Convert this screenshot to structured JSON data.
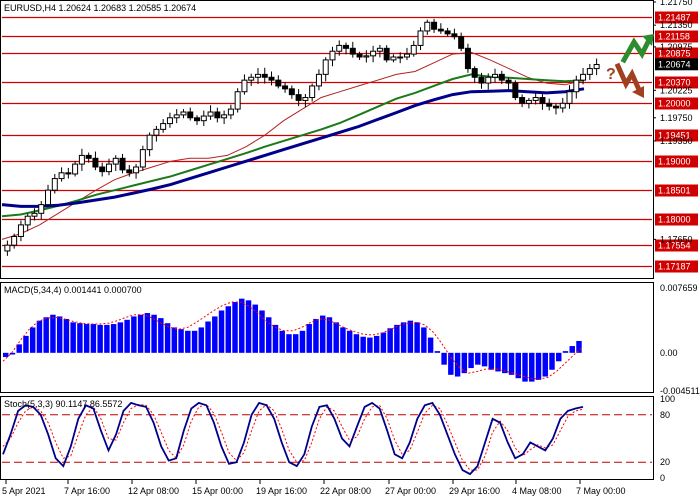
{
  "header": {
    "symbol_line": "EURUSD,H4  1.20624 1.20683 1.20585 1.20674"
  },
  "colors": {
    "background": "#ffffff",
    "candle": "#000000",
    "resistance": "#d00000",
    "price_tag": "#000000",
    "ma_fast": "#b22222",
    "ma_mid": "#1a7a1a",
    "ma_slow": "#00008b",
    "macd_hist": "#0000ff",
    "macd_signal": "#ff0000",
    "stoch_main": "#00008b",
    "stoch_signal": "#ff0000",
    "arrow_up": "#2e8b2e",
    "arrow_down": "#a0401f"
  },
  "icons": [
    "arrow-up-icon",
    "arrow-down-icon",
    "question-mark-icon"
  ],
  "chart_data": {
    "type": "candlestick",
    "title": "EURUSD,H4",
    "ohlc_readout": {
      "open": "1.20624",
      "high": "1.20683",
      "low": "1.20585",
      "close": "1.20674"
    },
    "price_axis": {
      "range": [
        1.17,
        1.2175
      ],
      "ticks": [
        "1.21750",
        "1.21350",
        "1.20975",
        "1.20225",
        "1.19750",
        "1.19350",
        "1.17650"
      ]
    },
    "levels": [
      {
        "label": "1.21487",
        "value": 1.21487,
        "kind": "resistance"
      },
      {
        "label": "1.21158",
        "value": 1.21158,
        "kind": "resistance"
      },
      {
        "label": "1.20875",
        "value": 1.20875,
        "kind": "resistance"
      },
      {
        "label": "1.20370",
        "value": 1.2037,
        "kind": "support"
      },
      {
        "label": "1.20000",
        "value": 1.2,
        "kind": "support"
      },
      {
        "label": "1.19451",
        "value": 1.19451,
        "kind": "support"
      },
      {
        "label": "1.19000",
        "value": 1.19,
        "kind": "support"
      },
      {
        "label": "1.18501",
        "value": 1.18501,
        "kind": "support"
      },
      {
        "label": "1.18000",
        "value": 1.18,
        "kind": "support"
      },
      {
        "label": "1.17554",
        "value": 1.17554,
        "kind": "support"
      },
      {
        "label": "1.17187",
        "value": 1.17187,
        "kind": "support"
      }
    ],
    "current_price": {
      "label": "1.20674",
      "value": 1.20674
    },
    "time_axis": [
      "5 Apr 2021",
      "7 Apr 16:00",
      "12 Apr 08:00",
      "15 Apr 00:00",
      "19 Apr 16:00",
      "22 Apr 08:00",
      "27 Apr 00:00",
      "29 Apr 16:00",
      "4 May 08:00",
      "7 May 00:00"
    ],
    "close_path": [
      1.1755,
      1.177,
      1.179,
      1.1805,
      1.181,
      1.1825,
      1.185,
      1.187,
      1.188,
      1.1878,
      1.1895,
      1.191,
      1.1905,
      1.189,
      1.1882,
      1.1895,
      1.1905,
      1.1885,
      1.188,
      1.189,
      1.192,
      1.1945,
      1.1955,
      1.1965,
      1.1975,
      1.198,
      1.1985,
      1.1975,
      1.197,
      1.1978,
      1.1985,
      1.1975,
      1.198,
      1.199,
      1.202,
      1.204,
      1.2045,
      1.205,
      1.2045,
      1.204,
      1.203,
      1.2025,
      1.2015,
      1.2005,
      1.201,
      1.203,
      1.205,
      1.2075,
      1.209,
      1.21,
      1.2095,
      1.2085,
      1.208,
      1.2082,
      1.209,
      1.2095,
      1.2075,
      1.208,
      1.208,
      1.2085,
      1.21,
      1.2125,
      1.214,
      1.2128,
      1.2125,
      1.212,
      1.2115,
      1.2095,
      1.206,
      1.2045,
      1.2035,
      1.2045,
      1.205,
      1.204,
      1.2035,
      1.201,
      1.2,
      1.2005,
      1.201,
      1.2,
      1.1995,
      1.1992,
      1.2,
      1.202,
      1.204,
      1.205,
      1.206,
      1.2067
    ],
    "moving_averages": [
      {
        "color_key": "ma_fast",
        "path": [
          1.1765,
          1.1775,
          1.179,
          1.181,
          1.183,
          1.185,
          1.1868,
          1.188,
          1.189,
          1.19,
          1.1905,
          1.1905,
          1.191,
          1.1925,
          1.1945,
          1.197,
          1.199,
          1.201,
          1.202,
          1.203,
          1.204,
          1.205,
          1.2055,
          1.207,
          1.2085,
          1.2088,
          1.2075,
          1.206,
          1.2045,
          1.2035,
          1.2032,
          1.204
        ]
      },
      {
        "color_key": "ma_mid",
        "path": [
          1.1805,
          1.1808,
          1.1815,
          1.1823,
          1.1832,
          1.1842,
          1.185,
          1.1858,
          1.1866,
          1.1874,
          1.1884,
          1.1894,
          1.1904,
          1.1914,
          1.1925,
          1.1935,
          1.1945,
          1.1955,
          1.1966,
          1.198,
          1.1994,
          1.2008,
          1.2018,
          1.203,
          1.2042,
          1.205,
          1.2046,
          1.2044,
          1.2042,
          1.204,
          1.2038,
          1.204
        ]
      },
      {
        "color_key": "ma_slow",
        "path": [
          1.1825,
          1.1822,
          1.1822,
          1.1824,
          1.1828,
          1.1833,
          1.1838,
          1.1845,
          1.1852,
          1.186,
          1.187,
          1.188,
          1.189,
          1.19,
          1.191,
          1.192,
          1.193,
          1.194,
          1.195,
          1.196,
          1.1972,
          1.1984,
          1.1996,
          1.2006,
          1.2015,
          1.202,
          1.2021,
          1.2022,
          1.202,
          1.2018,
          1.202,
          1.2025
        ]
      }
    ],
    "macd": {
      "label": "MACD(5,34,4) 0.001441 0.000700",
      "axis_ticks": [
        "0.007659",
        "0.00",
        "-0.004511"
      ],
      "histogram": [
        -0.0005,
        -0.0002,
        0.001,
        0.002,
        0.003,
        0.0038,
        0.0042,
        0.0045,
        0.0043,
        0.004,
        0.0036,
        0.0035,
        0.0034,
        0.0034,
        0.0033,
        0.0033,
        0.0034,
        0.0036,
        0.0039,
        0.0043,
        0.0045,
        0.0047,
        0.0045,
        0.0041,
        0.0035,
        0.003,
        0.0028,
        0.0026,
        0.0026,
        0.003,
        0.0037,
        0.0043,
        0.005,
        0.0055,
        0.006,
        0.0064,
        0.0062,
        0.0057,
        0.005,
        0.0042,
        0.0033,
        0.0026,
        0.0022,
        0.0022,
        0.0026,
        0.0034,
        0.004,
        0.0044,
        0.0042,
        0.0036,
        0.003,
        0.0026,
        0.0022,
        0.0019,
        0.0018,
        0.002,
        0.0024,
        0.0029,
        0.0033,
        0.0036,
        0.0038,
        0.0036,
        0.003,
        0.0018,
        0.0002,
        -0.0014,
        -0.0026,
        -0.0028,
        -0.0024,
        -0.0018,
        -0.0014,
        -0.0016,
        -0.002,
        -0.0022,
        -0.0024,
        -0.0026,
        -0.003,
        -0.0034,
        -0.0034,
        -0.0032,
        -0.0028,
        -0.002,
        -0.001,
        0.0002,
        0.0008,
        0.0014
      ],
      "signal": [
        -0.001,
        0.0,
        0.0015,
        0.0028,
        0.0037,
        0.0041,
        0.0042,
        0.004,
        0.0037,
        0.0035,
        0.0034,
        0.0034,
        0.0035,
        0.0038,
        0.0042,
        0.0045,
        0.0045,
        0.0041,
        0.0035,
        0.003,
        0.0028,
        0.003,
        0.0036,
        0.0043,
        0.005,
        0.0056,
        0.006,
        0.006,
        0.0055,
        0.0047,
        0.0037,
        0.003,
        0.0026,
        0.0026,
        0.003,
        0.0036,
        0.004,
        0.0039,
        0.0034,
        0.0029,
        0.0025,
        0.0022,
        0.0021,
        0.0023,
        0.0027,
        0.0032,
        0.0035,
        0.0036,
        0.0033,
        0.0024,
        0.001,
        -0.0006,
        -0.0018,
        -0.0024,
        -0.0022,
        -0.0019,
        -0.0019,
        -0.0021,
        -0.0024,
        -0.0027,
        -0.003,
        -0.0031,
        -0.0029,
        -0.0022,
        -0.0012,
        -0.0002,
        0.0007
      ]
    },
    "stochastic": {
      "label": "Stoch(5,3,3) 90.1147 86.5572",
      "axis_ticks": [
        "100",
        "80",
        "20",
        "0"
      ],
      "levels": [
        80,
        20
      ],
      "main": [
        30,
        55,
        85,
        92,
        90,
        80,
        55,
        25,
        15,
        40,
        75,
        92,
        88,
        60,
        35,
        55,
        85,
        95,
        92,
        90,
        70,
        40,
        22,
        25,
        60,
        88,
        95,
        92,
        70,
        40,
        18,
        20,
        45,
        80,
        95,
        92,
        75,
        45,
        20,
        15,
        30,
        65,
        90,
        92,
        75,
        50,
        40,
        65,
        90,
        95,
        88,
        60,
        30,
        25,
        45,
        75,
        92,
        95,
        80,
        55,
        30,
        10,
        5,
        15,
        45,
        75,
        70,
        45,
        25,
        30,
        45,
        40,
        35,
        50,
        75,
        85,
        88,
        90
      ],
      "signal": [
        40,
        50,
        70,
        85,
        90,
        85,
        70,
        45,
        25,
        28,
        55,
        80,
        90,
        75,
        50,
        48,
        70,
        88,
        93,
        92,
        80,
        58,
        35,
        25,
        42,
        72,
        90,
        93,
        82,
        58,
        32,
        22,
        32,
        60,
        85,
        93,
        85,
        62,
        35,
        20,
        22,
        45,
        75,
        90,
        85,
        65,
        48,
        52,
        75,
        90,
        92,
        75,
        48,
        30,
        35,
        58,
        82,
        92,
        88,
        68,
        45,
        22,
        10,
        10,
        28,
        58,
        72,
        60,
        38,
        28,
        36,
        42,
        38,
        42,
        60,
        78,
        85,
        87
      ]
    }
  }
}
